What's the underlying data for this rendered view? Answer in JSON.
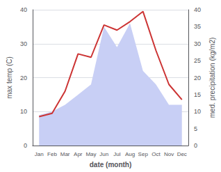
{
  "chart_data": {
    "type": "line",
    "categories": [
      "Jan",
      "Feb",
      "Mar",
      "Apr",
      "May",
      "Jun",
      "Jul",
      "Aug",
      "Sep",
      "Oct",
      "Nov",
      "Dec"
    ],
    "series": [
      {
        "type": "area",
        "color": "#c8cff5",
        "axis": "y2",
        "values": [
          9.0,
          10.0,
          12.0,
          15.0,
          18.0,
          35.0,
          29.0,
          36.0,
          22.0,
          18.0,
          12.0,
          12.0
        ]
      },
      {
        "type": "line",
        "color": "#cc3333",
        "values": [
          8.5,
          9.5,
          16.0,
          27.0,
          26.0,
          35.5,
          34.0,
          36.5,
          39.5,
          28.0,
          18.0,
          13.5
        ]
      }
    ],
    "xlabel": "date (month)",
    "ylabel": "max temp (C)",
    "y2label": "med. precipitation (kg/m2)",
    "ylim": [
      0,
      40
    ],
    "yticks": [
      0,
      10,
      20,
      30,
      40
    ],
    "y2lim": [
      0,
      40
    ],
    "y2ticks": [
      0,
      5,
      10,
      15,
      20,
      25,
      30,
      35,
      40
    ],
    "grid": true
  }
}
